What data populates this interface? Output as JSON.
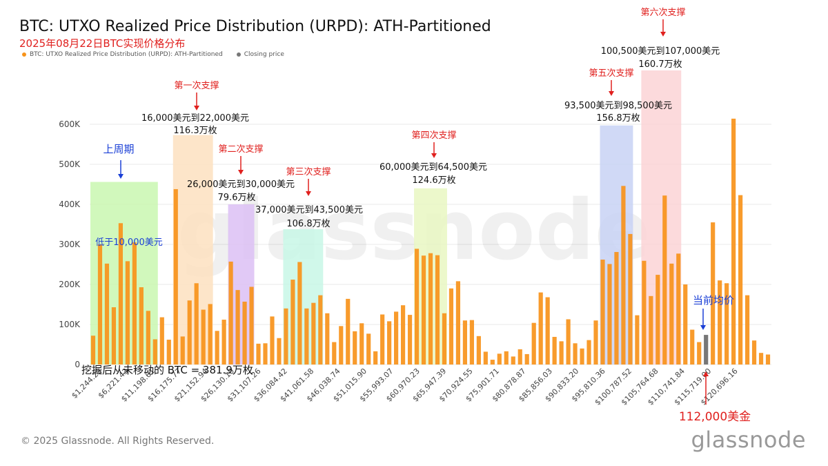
{
  "title": "BTC: UTXO Realized Price Distribution (URPD): ATH-Partitioned",
  "subtitle": "2025年08月22日BTC实现价格分布",
  "legend": [
    {
      "label": "BTC: UTXO Realized Price Distribution (URPD): ATH-Partitioned",
      "color": "#f7931a"
    },
    {
      "label": "Closing price",
      "color": "#777777"
    }
  ],
  "copyright": "© 2025 Glassnode. All Rights Reserved.",
  "brand": "glassnode",
  "watermark": "glassnode",
  "colors": {
    "bar": "#f7931a",
    "current_bar": "#777777",
    "annotation_red": "#e0201e",
    "annotation_blue": "#1a3fd6"
  },
  "chart_data": {
    "type": "bar",
    "ylim": [
      0,
      620000
    ],
    "yticks": [
      "0",
      "100K",
      "200K",
      "300K",
      "400K",
      "500K",
      "600K"
    ],
    "ytick_values": [
      0,
      100000,
      200000,
      300000,
      400000,
      500000,
      600000
    ],
    "xtick_labels": [
      "$1,244.29",
      "$6,221.43",
      "$11,198.61",
      "$16,175.77",
      "$21,152.94",
      "$26,130.10",
      "$31,107.26",
      "$36,084.42",
      "$41,061.58",
      "$46,038.74",
      "$51,015.90",
      "$55,993.07",
      "$60,970.23",
      "$65,947.39",
      "$70,924.55",
      "$75,901.71",
      "$80,878.87",
      "$85,856.03",
      "$90,833.20",
      "$95,810.36",
      "$100,787.52",
      "$105,764.68",
      "$110,741.84",
      "$115,719.00",
      "$120,696.16"
    ],
    "series": [
      {
        "values": [
          72000,
          300000,
          252000,
          143000,
          353000,
          258000,
          305000,
          193000,
          134000,
          63000,
          118000,
          62000,
          438000,
          70000,
          160000,
          203000,
          137000,
          151000,
          84000,
          112000,
          257000,
          186000,
          157000,
          194000,
          52000,
          53000,
          120000,
          66000,
          140000,
          212000,
          256000,
          140000,
          154000,
          173000,
          128000,
          56000,
          96000,
          164000,
          83000,
          103000,
          77000,
          33000,
          125000,
          108000,
          132000,
          148000,
          124000,
          289000,
          272000,
          278000,
          273000,
          128000,
          190000,
          208000,
          110000,
          111000,
          71000,
          32000,
          12000,
          27000,
          33000,
          20000,
          38000,
          26000,
          104000,
          180000,
          168000,
          69000,
          58000,
          113000,
          53000,
          40000,
          61000,
          110000,
          262000,
          251000,
          281000,
          446000,
          326000,
          123000,
          259000,
          171000,
          224000,
          422000,
          252000,
          277000,
          200000,
          87000,
          56000,
          74000,
          355000,
          210000,
          203000,
          614000,
          423000,
          173000,
          60000,
          29000,
          25000
        ]
      }
    ],
    "current_bar_index": 89,
    "unmoved_note": "挖掘后从未移动的 BTC = 381.9万枚",
    "annotations": [
      {
        "label": "上周期",
        "color": "blue",
        "from": 0,
        "to": 9,
        "top": 456000
      },
      {
        "label": "低于10,000美元",
        "color": "blue"
      },
      {
        "label": "第一次支撑",
        "range": "16,000美元到22,000美元",
        "amount": "116.3万枚",
        "from": 12,
        "to": 17,
        "top": 573000
      },
      {
        "label": "第二次支撑",
        "range": "26,000美元到30,000美元",
        "amount": "79.6万枚",
        "from": 20,
        "to": 23,
        "top": 400000
      },
      {
        "label": "第三次支撑",
        "range": "37,000美元到43,500美元",
        "amount": "106.8万枚",
        "from": 28,
        "to": 33,
        "top": 338000
      },
      {
        "label": "第四次支撑",
        "range": "60,000美元到64,500美元",
        "amount": "124.6万枚",
        "from": 47,
        "to": 51,
        "top": 440000
      },
      {
        "label": "第五次支撑",
        "range": "93,500美元到98,500美元",
        "amount": "156.8万枚",
        "from": 74,
        "to": 78,
        "top": 597000
      },
      {
        "label": "第六次支撑",
        "range": "100,500美元到107,000美元",
        "amount": "160.7万枚",
        "from": 80,
        "to": 85,
        "top": 736000
      },
      {
        "label": "当前均价",
        "color": "blue"
      },
      {
        "label": "112,000美金",
        "color": "red"
      }
    ]
  }
}
